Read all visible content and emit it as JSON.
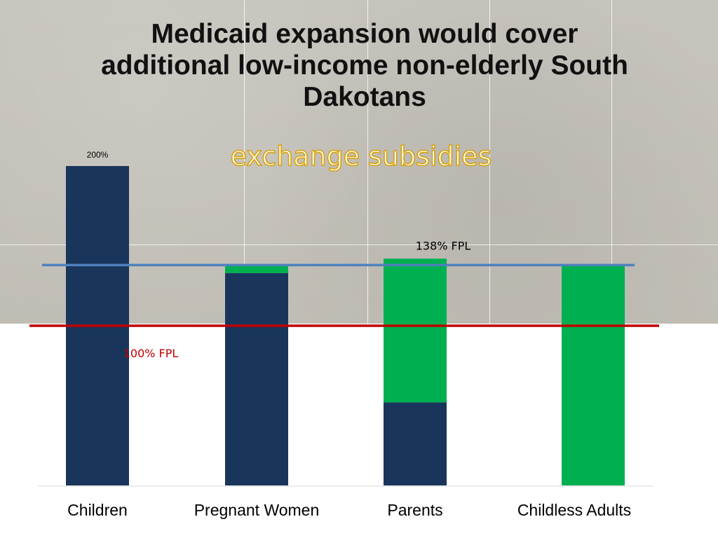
{
  "slide": {
    "title": "Medicaid expansion would cover additional low-income non-elderly South Dakotans",
    "subtitle": "exchange subsidies"
  },
  "chart_data": {
    "type": "bar",
    "stacked": true,
    "categories": [
      "Children",
      "Pregnant Women",
      "Parents",
      "Childless Adults"
    ],
    "series": [
      {
        "values": [
          200,
          133,
          52,
          0
        ],
        "color": "#1a355b"
      },
      {
        "values": [
          0,
          5,
          90,
          138
        ],
        "color": "#00b050"
      }
    ],
    "ylim": [
      0,
      220
    ],
    "data_labels": [
      {
        "category": "Children",
        "text": "200%"
      }
    ],
    "reference_lines": [
      {
        "value": 138,
        "label": "138% FPL",
        "color": "#4f81bd"
      },
      {
        "value": 100,
        "label": "100% FPL",
        "color": "#c00000"
      }
    ],
    "grid": false,
    "legend": "none"
  }
}
